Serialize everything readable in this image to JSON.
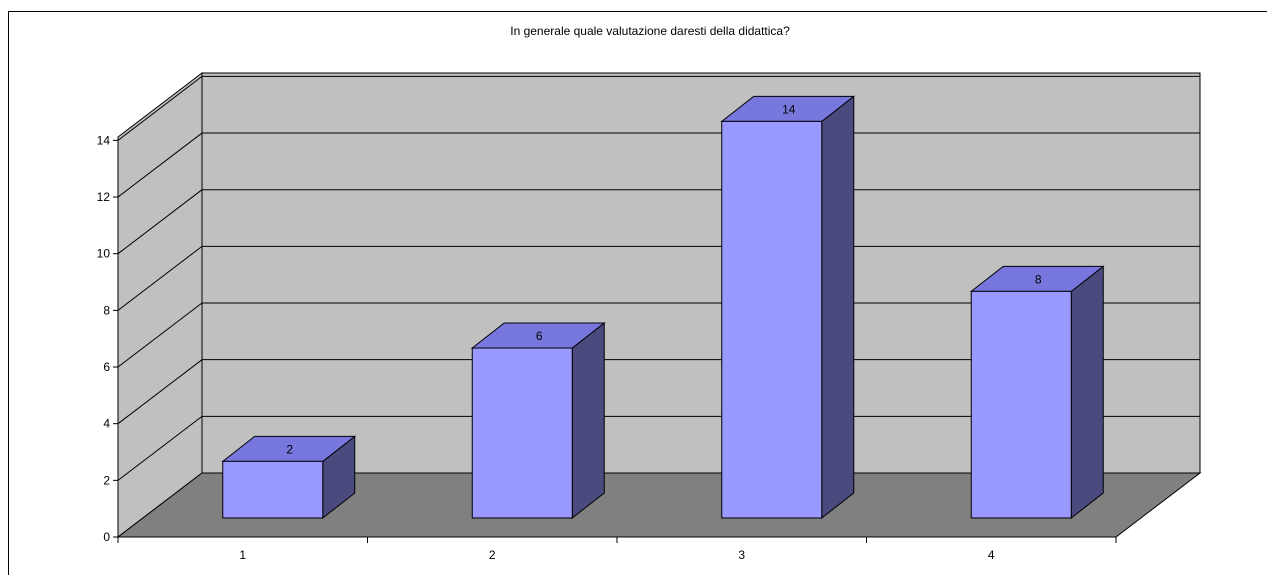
{
  "chart_data": {
    "type": "bar",
    "title": "In generale quale valutazione daresti della didattica?",
    "categories": [
      "1",
      "2",
      "3",
      "4"
    ],
    "values": [
      2,
      6,
      14,
      8
    ],
    "data_labels": [
      "2",
      "6",
      "14",
      "8"
    ],
    "y_ticks": [
      "0",
      "2",
      "4",
      "6",
      "8",
      "10",
      "12",
      "14"
    ],
    "ylim": [
      0,
      14
    ],
    "grid": true,
    "legend": "none",
    "style": "3d-column",
    "colors": {
      "bar_front": "#9999ff",
      "bar_side": "#4a4a7e",
      "bar_top": "#7777dd",
      "back_wall": "#c0c0c0",
      "side_wall": "#c0c0c0",
      "floor": "#808080"
    }
  }
}
